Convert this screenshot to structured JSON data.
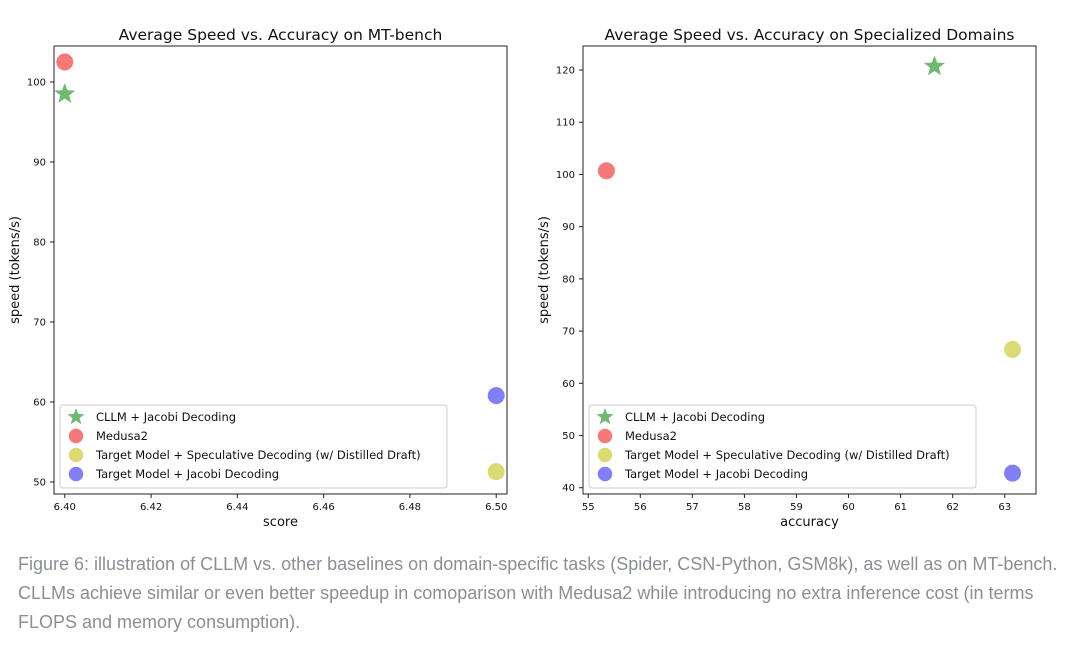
{
  "figure_caption": "Figure 6: illustration of CLLM vs. other baselines on domain-specific tasks (Spider, CSN-Python, GSM8k), as well as on MT-bench. CLLMs achieve similar or even better speedup in comoparison with Medusa2 while introducing no extra inference cost (in terms FLOPS and memory consumption).",
  "legend_entries": [
    {
      "label": "CLLM + Jacobi Decoding",
      "color": "#5fb35f",
      "marker": "star"
    },
    {
      "label": "Medusa2",
      "color": "#f46666",
      "marker": "circle"
    },
    {
      "label": "Target Model + Speculative Decoding (w/ Distilled Draft)",
      "color": "#d6d65e",
      "marker": "circle"
    },
    {
      "label": "Target Model + Jacobi Decoding",
      "color": "#6e6ef2",
      "marker": "circle"
    }
  ],
  "chart_data": [
    {
      "type": "scatter",
      "title": "Average Speed vs. Accuracy on MT-bench",
      "xlabel": "score",
      "ylabel": "speed (tokens/s)",
      "xlim": [
        6.3975,
        6.5025
      ],
      "ylim": [
        48.5,
        104.5
      ],
      "xticks": [
        6.4,
        6.42,
        6.44,
        6.46,
        6.48,
        6.5
      ],
      "xtick_labels": [
        "6.40",
        "6.42",
        "6.44",
        "6.46",
        "6.48",
        "6.50"
      ],
      "yticks": [
        50,
        60,
        70,
        80,
        90,
        100
      ],
      "ytick_labels": [
        "50",
        "60",
        "70",
        "80",
        "90",
        "100"
      ],
      "grid": false,
      "legend_position": "bottom-left",
      "series": [
        {
          "name": "CLLM + Jacobi Decoding",
          "x": [
            6.4
          ],
          "y": [
            98.5
          ]
        },
        {
          "name": "Medusa2",
          "x": [
            6.4
          ],
          "y": [
            102.5
          ]
        },
        {
          "name": "Target Model + Speculative Decoding (w/ Distilled Draft)",
          "x": [
            6.5
          ],
          "y": [
            51.3
          ]
        },
        {
          "name": "Target Model + Jacobi Decoding",
          "x": [
            6.5
          ],
          "y": [
            60.8
          ]
        }
      ]
    },
    {
      "type": "scatter",
      "title": "Average Speed vs. Accuracy on Specialized Domains",
      "xlabel": "accuracy",
      "ylabel": "speed (tokens/s)",
      "xlim": [
        54.9,
        63.6
      ],
      "ylim": [
        38.8,
        124.6
      ],
      "xticks": [
        55,
        56,
        57,
        58,
        59,
        60,
        61,
        62,
        63
      ],
      "xtick_labels": [
        "55",
        "56",
        "57",
        "58",
        "59",
        "60",
        "61",
        "62",
        "63"
      ],
      "yticks": [
        40,
        50,
        60,
        70,
        80,
        90,
        100,
        110,
        120
      ],
      "ytick_labels": [
        "40",
        "50",
        "60",
        "70",
        "80",
        "90",
        "100",
        "110",
        "120"
      ],
      "grid": false,
      "legend_position": "bottom-left",
      "series": [
        {
          "name": "CLLM + Jacobi Decoding",
          "x": [
            61.65
          ],
          "y": [
            120.7
          ]
        },
        {
          "name": "Medusa2",
          "x": [
            55.35
          ],
          "y": [
            100.7
          ]
        },
        {
          "name": "Target Model + Speculative Decoding (w/ Distilled Draft)",
          "x": [
            63.15
          ],
          "y": [
            66.5
          ]
        },
        {
          "name": "Target Model + Jacobi Decoding",
          "x": [
            63.15
          ],
          "y": [
            42.8
          ]
        }
      ]
    }
  ]
}
